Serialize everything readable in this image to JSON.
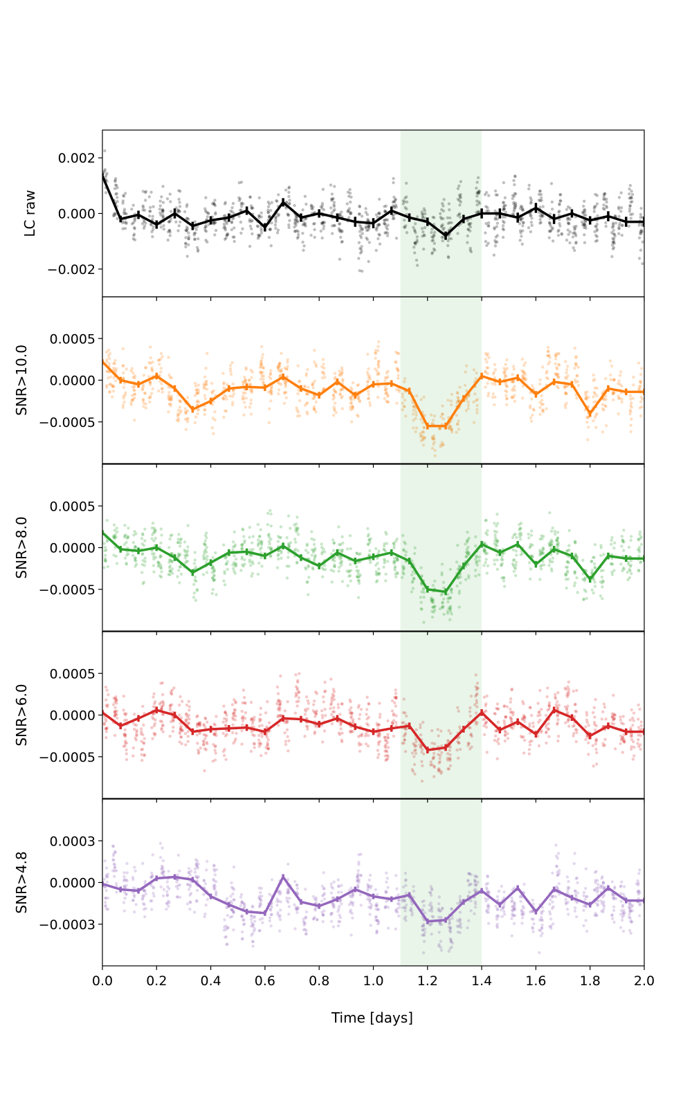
{
  "chart_data": {
    "type": "line",
    "figure": "Binned light curves with scatter points, five stacked panels sharing x-axis",
    "xlabel": "Time [days]",
    "xlim": [
      0.0,
      2.0
    ],
    "xticks": [
      0.0,
      0.2,
      0.4,
      0.6,
      0.8,
      1.0,
      1.2,
      1.4,
      1.6,
      1.8,
      2.0
    ],
    "xtick_labels": [
      "0.0",
      "0.2",
      "0.4",
      "0.6",
      "0.8",
      "1.0",
      "1.2",
      "1.4",
      "1.6",
      "1.8",
      "2.0"
    ],
    "highlight_band": {
      "x_start": 1.1,
      "x_end": 1.4,
      "color": "#2ca02c",
      "alpha": 0.1
    },
    "bin_x": [
      0.0,
      0.067,
      0.133,
      0.2,
      0.267,
      0.333,
      0.4,
      0.467,
      0.533,
      0.6,
      0.667,
      0.733,
      0.8,
      0.867,
      0.933,
      1.0,
      1.067,
      1.133,
      1.2,
      1.267,
      1.333,
      1.4,
      1.467,
      1.533,
      1.6,
      1.667,
      1.733,
      1.8,
      1.867,
      1.933,
      2.0
    ],
    "panels": [
      {
        "ylabel": "LC raw",
        "color": "#000000",
        "ylim": [
          -0.003,
          0.003
        ],
        "yticks": [
          -0.002,
          0.0,
          0.002
        ],
        "ytick_labels": [
          "−0.002",
          "0.000",
          "0.002"
        ],
        "bin_y": [
          0.00135,
          -0.0002,
          -5e-05,
          -0.0004,
          0.0,
          -0.00045,
          -0.00025,
          -0.00015,
          0.0001,
          -0.0005,
          0.0004,
          -0.00015,
          0.0,
          -0.00015,
          -0.0003,
          -0.00035,
          0.0001,
          -0.00015,
          -0.0003,
          -0.0008,
          -0.0002,
          0.0,
          0.0,
          -0.00015,
          0.0002,
          -0.0002,
          0.0,
          -0.00025,
          -0.0001,
          -0.0003,
          -0.0003
        ],
        "err": [
          0.0001,
          0.00012,
          0.00015,
          0.00015,
          0.00018,
          0.00015,
          0.00015,
          0.00015,
          0.00015,
          0.00015,
          0.00015,
          0.00015,
          0.00015,
          0.00015,
          0.00018,
          0.00018,
          0.00015,
          0.00015,
          0.00015,
          0.00015,
          0.00015,
          0.00018,
          0.00018,
          0.00018,
          0.00018,
          0.00018,
          0.00015,
          0.00015,
          0.00018,
          0.00018,
          0.00018
        ]
      },
      {
        "ylabel": "SNR>10.0",
        "color": "#ff7f0e",
        "ylim": [
          -0.001,
          0.001
        ],
        "yticks": [
          -0.0005,
          0.0,
          0.0005
        ],
        "ytick_labels": [
          "−0.0005",
          "0.0000",
          "0.0005"
        ],
        "bin_y": [
          0.00022,
          0.0,
          -5e-05,
          5e-05,
          -0.0001,
          -0.00035,
          -0.00025,
          -0.0001,
          -8e-05,
          -9e-05,
          4e-05,
          -0.0001,
          -0.00018,
          -2e-05,
          -0.00018,
          -5e-05,
          -4e-05,
          -0.00013,
          -0.00055,
          -0.00055,
          -0.00022,
          5e-05,
          -2e-05,
          3e-05,
          -0.00017,
          -2e-05,
          -5e-05,
          -0.0004,
          -0.0001,
          -0.00014,
          -0.00014
        ],
        "err": [
          3e-05,
          4e-05,
          4e-05,
          4e-05,
          4e-05,
          4e-05,
          4e-05,
          4e-05,
          4e-05,
          4e-05,
          4e-05,
          4e-05,
          4e-05,
          4e-05,
          4e-05,
          4e-05,
          4e-05,
          4e-05,
          4e-05,
          4e-05,
          4e-05,
          4e-05,
          4e-05,
          4e-05,
          4e-05,
          4e-05,
          4e-05,
          4e-05,
          4e-05,
          4e-05,
          4e-05
        ]
      },
      {
        "ylabel": "SNR>8.0",
        "color": "#2ca02c",
        "ylim": [
          -0.001,
          0.001
        ],
        "yticks": [
          -0.0005,
          0.0,
          0.0005
        ],
        "ytick_labels": [
          "−0.0005",
          "0.0000",
          "0.0005"
        ],
        "bin_y": [
          0.00018,
          -2e-05,
          -4e-05,
          0.0,
          -0.00012,
          -0.0003,
          -0.00018,
          -6e-05,
          -5e-05,
          -0.0001,
          2e-05,
          -0.00012,
          -0.00022,
          -6e-05,
          -0.00016,
          -0.00011,
          -6e-05,
          -0.00016,
          -0.0005,
          -0.00053,
          -0.00022,
          4e-05,
          -6e-05,
          4e-05,
          -0.0002,
          -2e-05,
          -0.0001,
          -0.00038,
          -0.0001,
          -0.00013,
          -0.00013
        ],
        "err": [
          3e-05,
          4e-05,
          4e-05,
          4e-05,
          4e-05,
          4e-05,
          4e-05,
          4e-05,
          4e-05,
          4e-05,
          4e-05,
          4e-05,
          4e-05,
          4e-05,
          4e-05,
          4e-05,
          4e-05,
          4e-05,
          4e-05,
          4e-05,
          4e-05,
          4e-05,
          4e-05,
          4e-05,
          4e-05,
          4e-05,
          4e-05,
          4e-05,
          4e-05,
          4e-05,
          4e-05
        ]
      },
      {
        "ylabel": "SNR>6.0",
        "color": "#d62728",
        "ylim": [
          -0.001,
          0.001
        ],
        "yticks": [
          -0.0005,
          0.0,
          0.0005
        ],
        "ytick_labels": [
          "−0.0005",
          "0.0000",
          "0.0005"
        ],
        "bin_y": [
          3e-05,
          -0.00013,
          -4e-05,
          6e-05,
          0.0,
          -0.0002,
          -0.00017,
          -0.00016,
          -0.00015,
          -0.0002,
          -4e-05,
          -5e-05,
          -0.00011,
          -4e-05,
          -0.00014,
          -0.0002,
          -0.00016,
          -0.00013,
          -0.00042,
          -0.00039,
          -0.00017,
          3e-05,
          -0.00018,
          -8e-05,
          -0.00023,
          6e-05,
          -3e-05,
          -0.00025,
          -0.00013,
          -0.0002,
          -0.0002
        ],
        "err": [
          3e-05,
          4e-05,
          4e-05,
          4e-05,
          4e-05,
          4e-05,
          4e-05,
          4e-05,
          4e-05,
          4e-05,
          4e-05,
          4e-05,
          4e-05,
          4e-05,
          4e-05,
          4e-05,
          4e-05,
          4e-05,
          4e-05,
          4e-05,
          4e-05,
          4e-05,
          4e-05,
          4e-05,
          4e-05,
          4e-05,
          4e-05,
          4e-05,
          4e-05,
          4e-05,
          4e-05
        ]
      },
      {
        "ylabel": "SNR>4.8",
        "color": "#9467bd",
        "ylim": [
          -0.0006,
          0.0006
        ],
        "yticks": [
          -0.0003,
          0.0,
          0.0003
        ],
        "ytick_labels": [
          "−0.0003",
          "0.0000",
          "0.0003"
        ],
        "bin_y": [
          -1e-05,
          -5e-05,
          -6e-05,
          3e-05,
          4e-05,
          2e-05,
          -0.0001,
          -0.00016,
          -0.00021,
          -0.00022,
          4e-05,
          -0.00014,
          -0.00017,
          -0.00012,
          -5e-05,
          -0.0001,
          -0.00012,
          -9e-05,
          -0.00028,
          -0.00027,
          -0.00014,
          -6e-05,
          -0.00016,
          -4e-05,
          -0.00021,
          -5e-05,
          -0.00011,
          -0.00016,
          -4e-05,
          -0.00013,
          -0.00013
        ],
        "err": [
          2e-05,
          2e-05,
          2e-05,
          2e-05,
          2e-05,
          2e-05,
          2e-05,
          2e-05,
          2e-05,
          2e-05,
          2e-05,
          2e-05,
          2e-05,
          2e-05,
          2e-05,
          2e-05,
          2e-05,
          2e-05,
          2e-05,
          2e-05,
          2e-05,
          2e-05,
          2e-05,
          2e-05,
          2e-05,
          2e-05,
          2e-05,
          2e-05,
          2e-05,
          2e-05,
          2e-05
        ]
      }
    ]
  }
}
